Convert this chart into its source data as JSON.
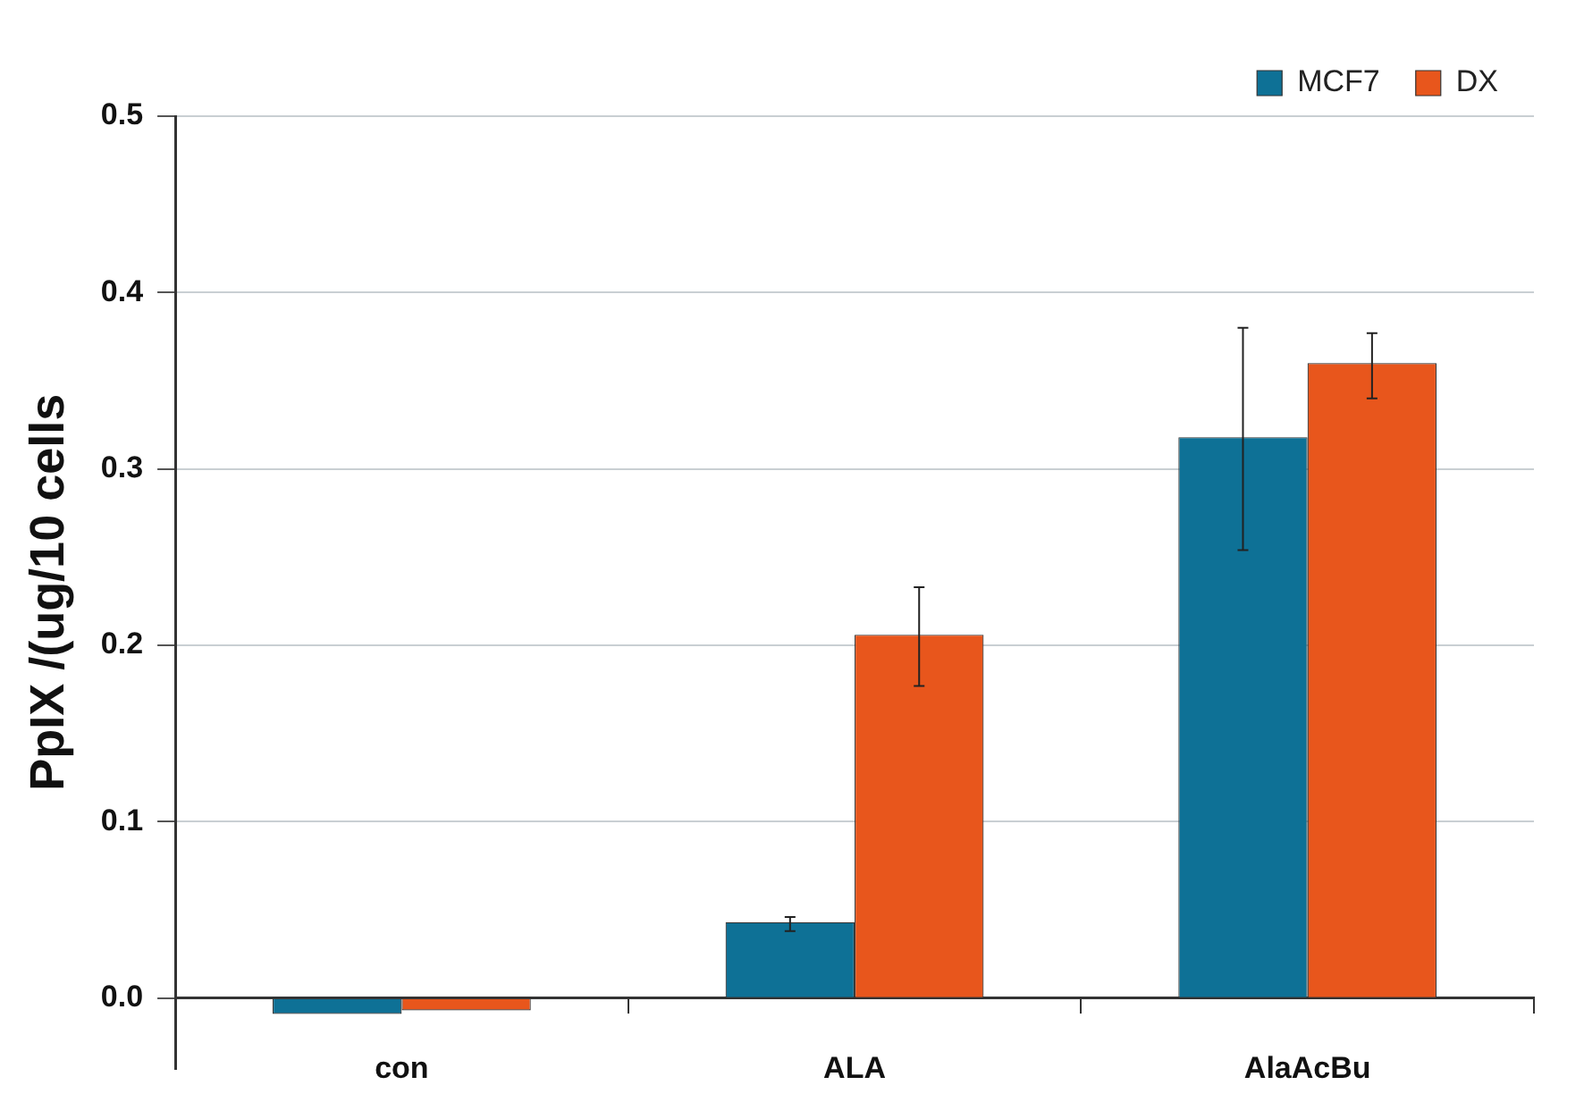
{
  "chart_data": {
    "type": "bar",
    "ylabel": "PpIX /(ug/10 cells",
    "categories": [
      "con",
      "ALA",
      "AlaAcBu"
    ],
    "series": [
      {
        "name": "MCF7",
        "color": "#0e7196",
        "values": [
          -0.009,
          0.043,
          0.318
        ],
        "errors": [
          null,
          [
            0.038,
            0.046
          ],
          [
            0.254,
            0.38
          ]
        ]
      },
      {
        "name": "DX",
        "color": "#e8561c",
        "values": [
          -0.007,
          0.206,
          0.36
        ],
        "errors": [
          null,
          [
            0.177,
            0.233
          ],
          [
            0.34,
            0.377
          ]
        ]
      }
    ],
    "ylim": [
      -0.04,
      0.5
    ],
    "yticks": [
      {
        "value": 0,
        "label": "0.0"
      },
      {
        "value": 0.1,
        "label": "0.1"
      },
      {
        "value": 0.2,
        "label": "0.2"
      },
      {
        "value": 0.3,
        "label": "0.3"
      },
      {
        "value": 0.4,
        "label": "0.4"
      },
      {
        "value": 0.5,
        "label": "0.5"
      }
    ],
    "grid": "y",
    "legend": "top right"
  }
}
